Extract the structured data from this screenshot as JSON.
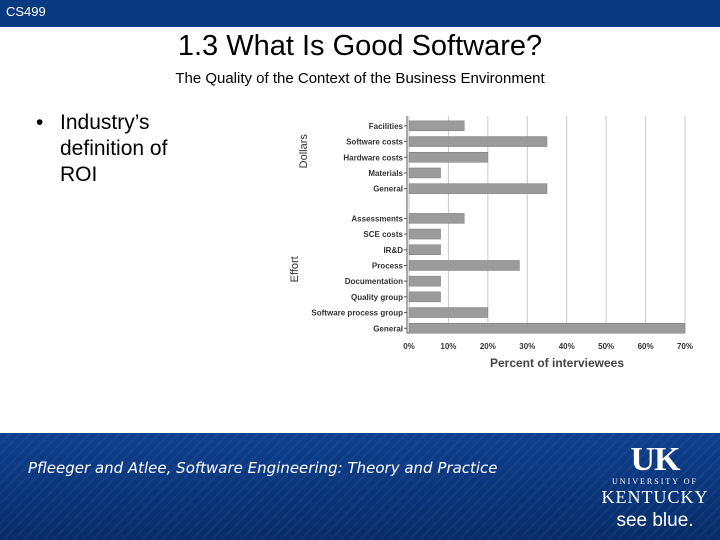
{
  "header": {
    "course": "CS499"
  },
  "slide": {
    "title": "1.3 What Is Good Software?",
    "subtitle": "The Quality of the Context of the Business Environment",
    "bullet_marker": "•",
    "bullet_text": "Industry’s definition of ROI"
  },
  "chart_data": {
    "type": "bar",
    "orientation": "horizontal",
    "title": "",
    "xlabel": "Percent of interviewees",
    "xlim": [
      0,
      70
    ],
    "x_ticks": [
      "0%",
      "10%",
      "20%",
      "30%",
      "40%",
      "50%",
      "60%",
      "70%"
    ],
    "groups": [
      {
        "name": "Dollars",
        "categories": [
          "Facilities",
          "Software costs",
          "Hardware costs",
          "Materials",
          "General"
        ],
        "values": [
          14,
          35,
          20,
          8,
          35
        ]
      },
      {
        "name": "Effort",
        "categories": [
          "Assessments",
          "SCE costs",
          "IR&D",
          "Process",
          "Documentation",
          "Quality group",
          "Software process group",
          "General"
        ],
        "values": [
          14,
          8,
          8,
          28,
          8,
          8,
          20,
          70
        ]
      }
    ],
    "colors": {
      "bar": "#9b9b9b",
      "bar_edge": "#7a7a7a",
      "grid": "#c8c8c8",
      "axis": "#555555"
    }
  },
  "footer": {
    "citation": "Pfleeger and Atlee, Software Engineering: Theory and Practice",
    "logo": {
      "uk": "UK",
      "university_of": "UNIVERSITY OF",
      "kentucky": "KENTUCKY",
      "seeblue": "see blue."
    }
  }
}
